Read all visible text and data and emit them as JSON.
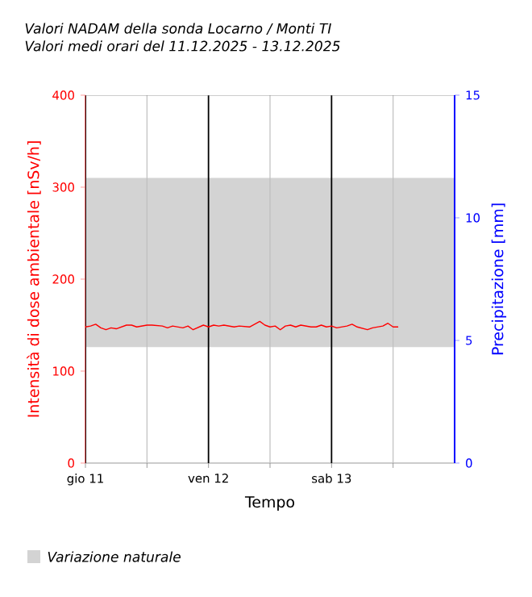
{
  "chart_data": {
    "type": "line",
    "title": "Valori NADAM della sonda Locarno / Monti TI",
    "subtitle": "Valori medi orari del 11.12.2025 - 13.12.2025",
    "xlabel": "Tempo",
    "ylabel": "Intensità di dose ambientale [nSv/h]",
    "y2label": "Precipitazione [mm]",
    "x": [
      "2025-12-11T00:00",
      "2025-12-11T01:00",
      "2025-12-11T02:00",
      "2025-12-11T03:00",
      "2025-12-11T04:00",
      "2025-12-11T05:00",
      "2025-12-11T06:00",
      "2025-12-11T08:00",
      "2025-12-11T09:00",
      "2025-12-11T10:00",
      "2025-12-11T12:00",
      "2025-12-11T13:00",
      "2025-12-11T15:00",
      "2025-12-11T16:00",
      "2025-12-11T17:00",
      "2025-12-11T18:00",
      "2025-12-11T19:00",
      "2025-12-11T20:00",
      "2025-12-11T21:00",
      "2025-12-11T23:00",
      "2025-12-12T00:00",
      "2025-12-12T01:00",
      "2025-12-12T02:00",
      "2025-12-12T03:00",
      "2025-12-12T05:00",
      "2025-12-12T06:00",
      "2025-12-12T08:00",
      "2025-12-12T10:00",
      "2025-12-12T11:00",
      "2025-12-12T12:00",
      "2025-12-12T13:00",
      "2025-12-12T14:00",
      "2025-12-12T15:00",
      "2025-12-12T16:00",
      "2025-12-12T17:00",
      "2025-12-12T18:00",
      "2025-12-12T20:00",
      "2025-12-12T21:00",
      "2025-12-12T22:00",
      "2025-12-12T23:00",
      "2025-12-13T00:00",
      "2025-12-13T01:00",
      "2025-12-13T02:00",
      "2025-12-13T03:00",
      "2025-12-13T04:00",
      "2025-12-13T05:00",
      "2025-12-13T07:00",
      "2025-12-13T08:00",
      "2025-12-13T10:00",
      "2025-12-13T11:00",
      "2025-12-13T12:00",
      "2025-12-13T13:00"
    ],
    "series": [
      {
        "color": "#ff0000",
        "values": [
          148,
          149,
          151,
          147,
          145,
          147,
          146,
          150,
          150,
          148,
          150,
          150,
          149,
          147,
          149,
          148,
          147,
          149,
          145,
          150,
          148,
          150,
          149,
          150,
          148,
          149,
          148,
          154,
          150,
          148,
          149,
          145,
          149,
          150,
          148,
          150,
          148,
          148,
          150,
          148,
          149,
          147,
          148,
          149,
          151,
          148,
          145,
          147,
          149,
          152,
          148,
          148
        ]
      }
    ],
    "xlim": [
      "2025-12-11T00:00",
      "2025-12-14T00:00"
    ],
    "xticks": [
      {
        "value": "2025-12-11T00:00",
        "label": "gio 11"
      },
      {
        "value": "2025-12-11T12:00",
        "label": null
      },
      {
        "value": "2025-12-12T00:00",
        "label": "ven 12"
      },
      {
        "value": "2025-12-12T12:00",
        "label": null
      },
      {
        "value": "2025-12-13T00:00",
        "label": "sab 13"
      },
      {
        "value": "2025-12-13T12:00",
        "label": null
      }
    ],
    "ylim": [
      0,
      400
    ],
    "yticks": [
      0,
      100,
      200,
      300,
      400
    ],
    "y2lim": [
      0,
      15
    ],
    "y2ticks": [
      0,
      5,
      10,
      15
    ],
    "bands": [
      {
        "axis": "y",
        "from": 126,
        "to": 310,
        "label": "Variazione naturale",
        "color": "#d3d3d3"
      }
    ],
    "grid": "x",
    "legend": "bottom"
  }
}
